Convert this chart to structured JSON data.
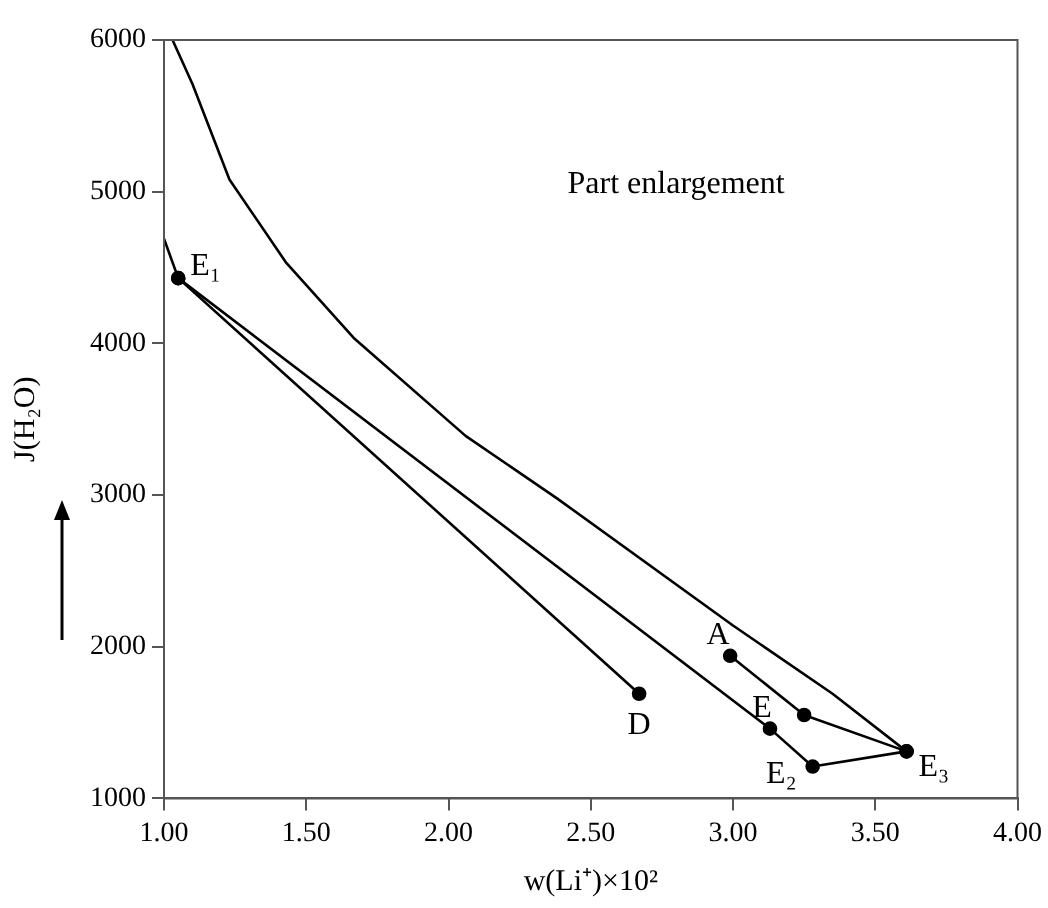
{
  "chart_data": {
    "type": "line",
    "xlabel": "w(Li⁺)×10²",
    "ylabel": "J(H₂O)",
    "xlim": [
      1.0,
      4.0
    ],
    "xticks": [
      {
        "value": 1,
        "label": "1.00"
      },
      {
        "value": 1.5,
        "label": "1.50"
      },
      {
        "value": 2,
        "label": "2.00"
      },
      {
        "value": 2.5,
        "label": "2.50"
      },
      {
        "value": 3,
        "label": "3.00"
      },
      {
        "value": 3.5,
        "label": "3.50"
      },
      {
        "value": 4,
        "label": "4.00"
      }
    ],
    "ylim": [
      1000,
      6000
    ],
    "yticks": [
      1000,
      2000,
      3000,
      4000,
      5000,
      6000
    ],
    "grid": false,
    "legend": false,
    "series": [
      {
        "color": "#000000",
        "marker": "none",
        "x": [
          1.03,
          1.1,
          1.23,
          1.43,
          1.67,
          2.06,
          2.38,
          3.0,
          3.35,
          3.61
        ],
        "values": [
          6000,
          5710,
          5080,
          4530,
          4030,
          3390,
          2980,
          2140,
          1690,
          1310
        ]
      },
      {
        "color": "#000000",
        "x": [
          1.0,
          1.05
        ],
        "values": [
          4690,
          4430
        ]
      },
      {
        "color": "#000000",
        "marker": "circle",
        "x": [
          1.05,
          3.13,
          3.28,
          3.61
        ],
        "values": [
          4430,
          1460,
          1210,
          1310
        ]
      },
      {
        "color": "#000000",
        "marker": "circle",
        "x": [
          1.05,
          2.67
        ],
        "values": [
          4430,
          1690
        ]
      },
      {
        "color": "#000000",
        "marker": "circle",
        "x": [
          2.99,
          3.25,
          3.61
        ],
        "values": [
          1940,
          1550,
          1310
        ]
      }
    ],
    "annotations": [
      "Part enlargement",
      {
        "text": "E₁",
        "x": 1.05,
        "y": 4430
      },
      {
        "text": "D",
        "x": 2.67,
        "y": 1690
      },
      {
        "text": "A",
        "x": 2.99,
        "y": 1940
      },
      {
        "text": "E",
        "x": 3.13,
        "y": 1460
      },
      {
        "text": "E₂",
        "x": 3.28,
        "y": 1210
      },
      {
        "text": "E₃",
        "x": 3.61,
        "y": 1310
      }
    ]
  }
}
